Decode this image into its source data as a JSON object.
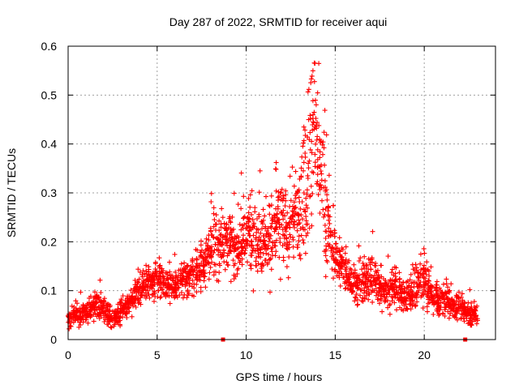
{
  "chart_data": {
    "type": "scatter",
    "title": "Day 287 of 2022, SRMTID for receiver aqui",
    "xlabel": "GPS time / hours",
    "ylabel": "SRMTID / TECUs",
    "xlim": [
      0,
      24
    ],
    "ylim": [
      0,
      0.6
    ],
    "xticks": [
      "0",
      "5",
      "10",
      "15",
      "20"
    ],
    "yticks": [
      "0",
      "0.1",
      "0.2",
      "0.3",
      "0.4",
      "0.5",
      "0.6"
    ],
    "grid": true,
    "legend": "none",
    "marker": "plus",
    "marker_color": "#ff0000",
    "series": [
      {
        "name": "SRMTID",
        "x": [
          0.0,
          0.25,
          0.5,
          0.75,
          1.0,
          1.25,
          1.5,
          1.75,
          2.0,
          2.25,
          2.5,
          2.75,
          3.0,
          3.25,
          3.5,
          3.75,
          4.0,
          4.25,
          4.5,
          4.75,
          5.0,
          5.25,
          5.5,
          5.75,
          6.0,
          6.25,
          6.5,
          6.75,
          7.0,
          7.25,
          7.5,
          7.75,
          8.0,
          8.25,
          8.5,
          8.75,
          9.0,
          9.25,
          9.5,
          9.75,
          10.0,
          10.25,
          10.5,
          10.75,
          11.0,
          11.25,
          11.5,
          11.75,
          12.0,
          12.25,
          12.5,
          12.75,
          13.0,
          13.25,
          13.5,
          13.75,
          14.0,
          14.25,
          14.5,
          14.75,
          15.0,
          15.25,
          15.5,
          15.75,
          16.0,
          16.25,
          16.5,
          16.75,
          17.0,
          17.25,
          17.5,
          17.75,
          18.0,
          18.25,
          18.5,
          18.75,
          19.0,
          19.25,
          19.5,
          19.75,
          20.0,
          20.25,
          20.5,
          20.75,
          21.0,
          21.25,
          21.5,
          21.75,
          22.0,
          22.25,
          22.5,
          22.75
        ],
        "values": [
          0.04,
          0.045,
          0.05,
          0.05,
          0.055,
          0.06,
          0.07,
          0.07,
          0.065,
          0.05,
          0.045,
          0.05,
          0.06,
          0.07,
          0.08,
          0.09,
          0.1,
          0.11,
          0.12,
          0.12,
          0.125,
          0.12,
          0.115,
          0.11,
          0.11,
          0.115,
          0.12,
          0.125,
          0.13,
          0.14,
          0.15,
          0.16,
          0.19,
          0.2,
          0.2,
          0.21,
          0.2,
          0.19,
          0.18,
          0.2,
          0.21,
          0.22,
          0.22,
          0.2,
          0.21,
          0.2,
          0.22,
          0.24,
          0.23,
          0.22,
          0.23,
          0.25,
          0.26,
          0.3,
          0.38,
          0.42,
          0.4,
          0.33,
          0.26,
          0.2,
          0.17,
          0.16,
          0.14,
          0.13,
          0.12,
          0.11,
          0.11,
          0.12,
          0.13,
          0.12,
          0.11,
          0.1,
          0.1,
          0.11,
          0.1,
          0.09,
          0.09,
          0.1,
          0.1,
          0.11,
          0.12,
          0.1,
          0.09,
          0.08,
          0.08,
          0.075,
          0.07,
          0.07,
          0.065,
          0.06,
          0.055,
          0.05
        ],
        "spread": [
          0.015,
          0.02,
          0.02,
          0.02,
          0.02,
          0.025,
          0.025,
          0.025,
          0.02,
          0.02,
          0.02,
          0.02,
          0.025,
          0.025,
          0.025,
          0.03,
          0.03,
          0.03,
          0.03,
          0.03,
          0.03,
          0.03,
          0.03,
          0.03,
          0.03,
          0.03,
          0.035,
          0.035,
          0.035,
          0.04,
          0.04,
          0.05,
          0.06,
          0.06,
          0.06,
          0.06,
          0.06,
          0.06,
          0.05,
          0.06,
          0.06,
          0.07,
          0.08,
          0.07,
          0.07,
          0.07,
          0.08,
          0.08,
          0.08,
          0.08,
          0.08,
          0.09,
          0.1,
          0.12,
          0.15,
          0.16,
          0.14,
          0.12,
          0.1,
          0.06,
          0.05,
          0.04,
          0.04,
          0.04,
          0.04,
          0.04,
          0.04,
          0.045,
          0.05,
          0.045,
          0.04,
          0.04,
          0.04,
          0.04,
          0.04,
          0.035,
          0.035,
          0.035,
          0.04,
          0.04,
          0.05,
          0.04,
          0.035,
          0.03,
          0.03,
          0.03,
          0.025,
          0.025,
          0.025,
          0.02,
          0.02,
          0.02
        ]
      }
    ],
    "boundary_marks": {
      "x": [
        8.7,
        22.3
      ],
      "values": [
        0,
        0
      ]
    }
  }
}
